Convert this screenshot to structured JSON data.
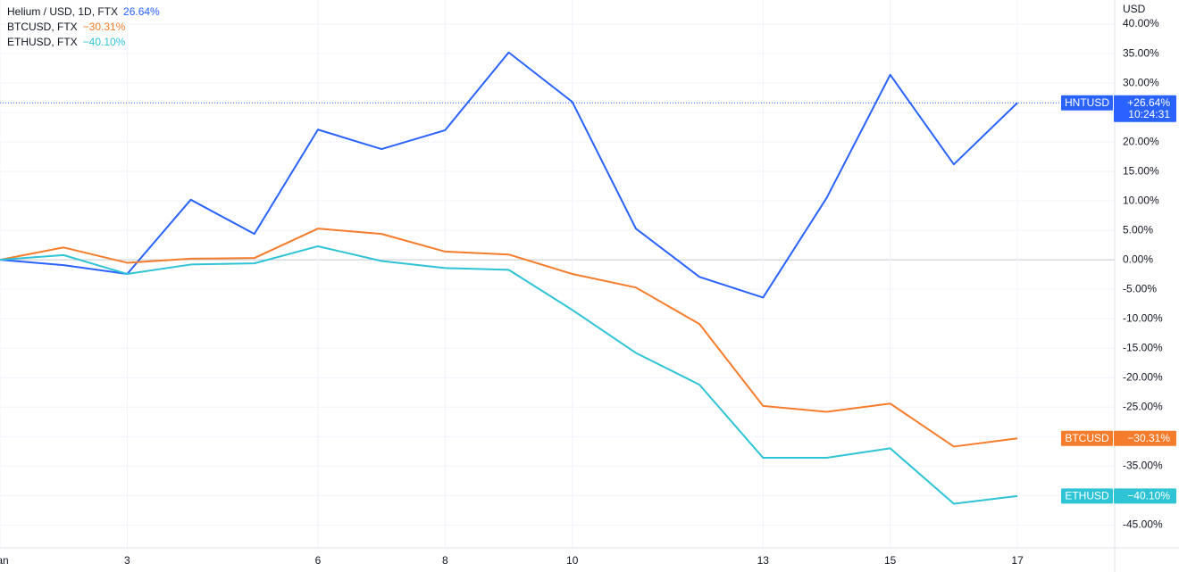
{
  "chart_data": {
    "type": "line",
    "y_unit": "USD",
    "x": [
      1,
      2,
      3,
      4,
      5,
      6,
      7,
      8,
      9,
      10,
      11,
      12,
      13,
      14,
      15,
      16,
      17
    ],
    "xlim": [
      1,
      18.53
    ],
    "xticks": [
      {
        "value": 1,
        "label": "Jan"
      },
      3,
      6,
      8,
      10,
      13,
      15,
      17
    ],
    "ylim": [
      -48.9,
      44.1
    ],
    "yticks": [
      {
        "value": 40,
        "label": "40.00%"
      },
      {
        "value": 35,
        "label": "35.00%"
      },
      {
        "value": 30,
        "label": "30.00%"
      },
      {
        "value": 25,
        "label": "25.00%"
      },
      {
        "value": 20,
        "label": "20.00%"
      },
      {
        "value": 15,
        "label": "15.00%"
      },
      {
        "value": 10,
        "label": "10.00%"
      },
      {
        "value": 5,
        "label": "5.00%"
      },
      {
        "value": 0,
        "label": "0.00%"
      },
      {
        "value": -5,
        "label": "-5.00%"
      },
      {
        "value": -10,
        "label": "-10.00%"
      },
      {
        "value": -15,
        "label": "-15.00%"
      },
      {
        "value": -20,
        "label": "-20.00%"
      },
      {
        "value": -25,
        "label": "-25.00%"
      },
      {
        "value": -30,
        "label": "-30.00%"
      },
      {
        "value": -35,
        "label": "-35.00%"
      },
      {
        "value": -40,
        "label": "-40.00%"
      },
      {
        "value": -45,
        "label": "-45.00%"
      }
    ],
    "grid": true,
    "series": [
      {
        "name": "Helium / USD, 1D, FTX",
        "symbol": "HNTUSD",
        "color": "#2962ff",
        "values": [
          0,
          -0.9,
          -2.4,
          10.2,
          4.4,
          22.1,
          18.8,
          22.0,
          35.2,
          26.8,
          5.3,
          -2.9,
          -6.4,
          10.5,
          31.4,
          16.2,
          26.64
        ],
        "legend_label": "26.64%",
        "tag_label": "+26.64%",
        "tag_time": "10:24:31",
        "price_line": true
      },
      {
        "name": "BTCUSD, FTX",
        "symbol": "BTCUSD",
        "color": "#f57c2b",
        "values": [
          0,
          2.1,
          -0.5,
          0.2,
          0.3,
          5.3,
          4.4,
          1.4,
          0.9,
          -2.4,
          -4.7,
          -10.9,
          -24.8,
          -25.8,
          -24.4,
          -31.7,
          -30.31
        ],
        "legend_label": "−30.31%",
        "tag_label": "−30.31%"
      },
      {
        "name": "ETHUSD, FTX",
        "symbol": "ETHUSD",
        "color": "#2ec4d6",
        "values": [
          0,
          0.8,
          -2.4,
          -0.8,
          -0.6,
          2.3,
          -0.2,
          -1.4,
          -1.7,
          -8.5,
          -15.8,
          -21.2,
          -33.6,
          -33.6,
          -32.0,
          -41.4,
          -40.1
        ],
        "legend_label": "−40.10%",
        "tag_label": "−40.10%"
      }
    ]
  }
}
